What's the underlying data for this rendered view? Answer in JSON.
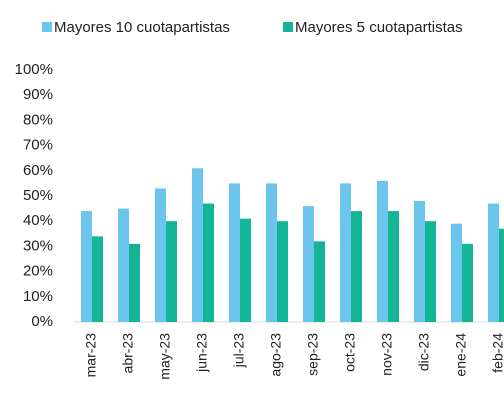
{
  "chart_data": {
    "type": "bar",
    "categories": [
      "mar-23",
      "abr-23",
      "may-23",
      "jun-23",
      "jul-23",
      "ago-23",
      "sep-23",
      "oct-23",
      "nov-23",
      "dic-23",
      "ene-24",
      "feb-24"
    ],
    "series": [
      {
        "name": "Mayores 10 cuotapartistas",
        "color": "#6cc5ec",
        "values": [
          44,
          45,
          53,
          61,
          55,
          55,
          46,
          55,
          56,
          48,
          39,
          47
        ]
      },
      {
        "name": "Mayores 5 cuotapartistas",
        "color": "#14b496",
        "values": [
          34,
          31,
          40,
          47,
          41,
          40,
          32,
          44,
          44,
          40,
          31,
          37
        ]
      }
    ],
    "ylim": [
      0,
      100
    ],
    "yticks": [
      {
        "value": 0,
        "label": "0%"
      },
      {
        "value": 10,
        "label": "10%"
      },
      {
        "value": 20,
        "label": "20%"
      },
      {
        "value": 30,
        "label": "30%"
      },
      {
        "value": 40,
        "label": "40%"
      },
      {
        "value": 50,
        "label": "50%"
      },
      {
        "value": 60,
        "label": "60%"
      },
      {
        "value": 70,
        "label": "70%"
      },
      {
        "value": 80,
        "label": "80%"
      },
      {
        "value": 90,
        "label": "90%"
      },
      {
        "value": 100,
        "label": "100%"
      }
    ],
    "legend": "top"
  }
}
